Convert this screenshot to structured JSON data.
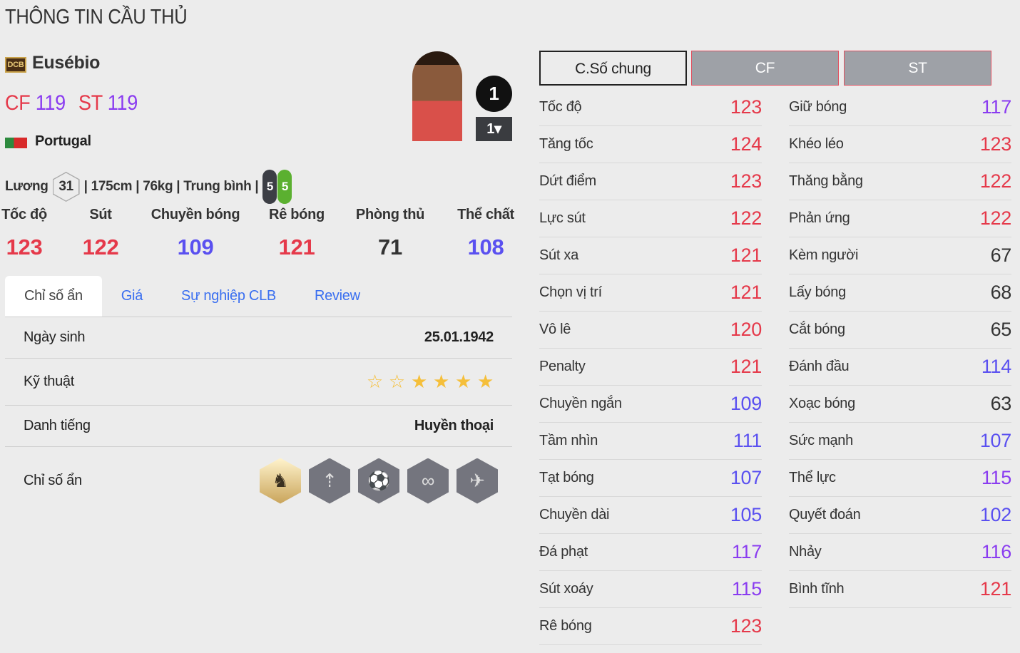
{
  "page_title": "THÔNG TIN CẦU THỦ",
  "player": {
    "season_badge": "DCB",
    "name": "Eusébio",
    "positions": [
      {
        "pos": "CF",
        "ovr": "119"
      },
      {
        "pos": "ST",
        "ovr": "119"
      }
    ],
    "country": "Portugal",
    "level": "1",
    "level_select": "1▾",
    "salary_label": "Lương",
    "salary": "31",
    "details": "| 175cm | 76kg | Trung bình |",
    "left_foot": "5",
    "right_foot": "5"
  },
  "main_stats": [
    {
      "label": "Tốc độ",
      "value": "123"
    },
    {
      "label": "Sút",
      "value": "122"
    },
    {
      "label": "Chuyền bóng",
      "value": "109"
    },
    {
      "label": "Rê bóng",
      "value": "121"
    },
    {
      "label": "Phòng thủ",
      "value": "71"
    },
    {
      "label": "Thể chất",
      "value": "108"
    }
  ],
  "tabs": [
    "Chỉ số ẩn",
    "Giá",
    "Sự nghiệp CLB",
    "Review"
  ],
  "info": {
    "birth_label": "Ngày sinh",
    "birth": "25.01.1942",
    "skill_label": "Kỹ thuật",
    "skill_stars": 4,
    "skill_max": 6,
    "rep_label": "Danh tiếng",
    "rep": "Huyền thoại",
    "traits_label": "Chỉ số ẩn",
    "traits": [
      "knight-horse-icon",
      "long-shot-icon",
      "speed-dribbler-icon",
      "flair-icon",
      "power-header-icon"
    ]
  },
  "colors": {
    "red": "#e5394a",
    "violet": "#8a3cf0",
    "blue": "#5a50f0",
    "dark": "#333333"
  },
  "stat_tabs": [
    "C.Số chung",
    "CF",
    "ST"
  ],
  "stats_left": [
    [
      "Tốc độ",
      "123"
    ],
    [
      "Tăng tốc",
      "124"
    ],
    [
      "Dứt điểm",
      "123"
    ],
    [
      "Lực sút",
      "122"
    ],
    [
      "Sút xa",
      "121"
    ],
    [
      "Chọn vị trí",
      "121"
    ],
    [
      "Vô lê",
      "120"
    ],
    [
      "Penalty",
      "121"
    ],
    [
      "Chuyền ngắn",
      "109"
    ],
    [
      "Tầm nhìn",
      "111"
    ],
    [
      "Tạt bóng",
      "107"
    ],
    [
      "Chuyền dài",
      "105"
    ],
    [
      "Đá phạt",
      "117"
    ],
    [
      "Sút xoáy",
      "115"
    ],
    [
      "Rê bóng",
      "123"
    ]
  ],
  "stats_right": [
    [
      "Giữ bóng",
      "117"
    ],
    [
      "Khéo léo",
      "123"
    ],
    [
      "Thăng bằng",
      "122"
    ],
    [
      "Phản ứng",
      "122"
    ],
    [
      "Kèm người",
      "67"
    ],
    [
      "Lấy bóng",
      "68"
    ],
    [
      "Cắt bóng",
      "65"
    ],
    [
      "Đánh đầu",
      "114"
    ],
    [
      "Xoạc bóng",
      "63"
    ],
    [
      "Sức mạnh",
      "107"
    ],
    [
      "Thể lực",
      "115"
    ],
    [
      "Quyết đoán",
      "102"
    ],
    [
      "Nhảy",
      "116"
    ],
    [
      "Bình tĩnh",
      "121"
    ]
  ]
}
